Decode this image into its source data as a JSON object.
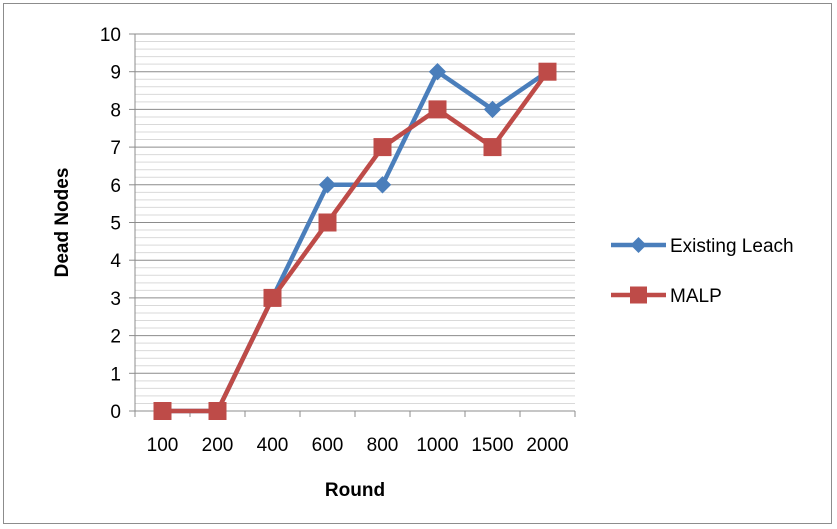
{
  "chart_data": {
    "type": "line",
    "categories": [
      "100",
      "200",
      "400",
      "600",
      "800",
      "1000",
      "1500",
      "2000"
    ],
    "series": [
      {
        "name": "Existing Leach",
        "values": [
          0,
          0,
          3,
          6,
          6,
          9,
          8,
          9
        ],
        "color": "#4a7ebb",
        "marker": "diamond"
      },
      {
        "name": "MALP",
        "values": [
          0,
          0,
          3,
          5,
          7,
          8,
          7,
          9
        ],
        "color": "#be4b48",
        "marker": "square"
      }
    ],
    "title": "",
    "xlabel": "Round",
    "ylabel": "Dead Nodes",
    "ylim": [
      0,
      10
    ],
    "y_ticks": [
      0,
      1,
      2,
      3,
      4,
      5,
      6,
      7,
      8,
      9,
      10
    ],
    "y_minor_step": 0.2,
    "grid": true,
    "legend": "right"
  }
}
